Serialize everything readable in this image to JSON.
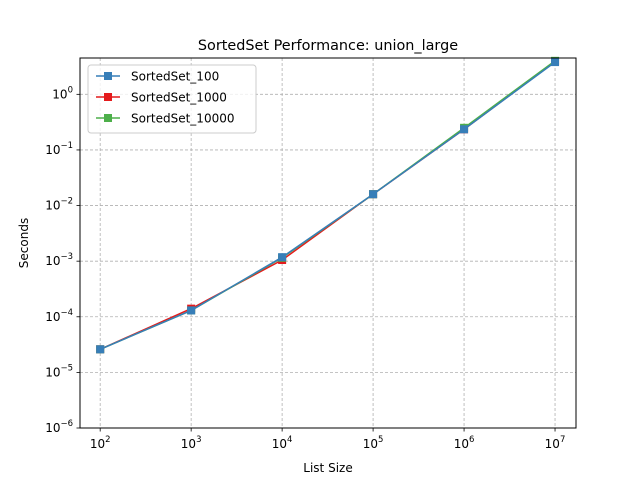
{
  "chart_data": {
    "type": "line",
    "title": "SortedSet Performance: union_large",
    "xlabel": "List Size",
    "ylabel": "Seconds",
    "xscale": "log",
    "yscale": "log",
    "xlim": [
      60,
      17000000
    ],
    "ylim": [
      1e-06,
      4.5
    ],
    "grid": true,
    "legend_position": "top-left",
    "x": [
      100,
      1000,
      10000,
      100000,
      1000000,
      10000000
    ],
    "x_ticks": [
      {
        "value": 100,
        "base": "10",
        "exp": "2"
      },
      {
        "value": 1000,
        "base": "10",
        "exp": "3"
      },
      {
        "value": 10000,
        "base": "10",
        "exp": "4"
      },
      {
        "value": 100000,
        "base": "10",
        "exp": "5"
      },
      {
        "value": 1000000,
        "base": "10",
        "exp": "6"
      },
      {
        "value": 10000000,
        "base": "10",
        "exp": "7"
      }
    ],
    "y_ticks": [
      {
        "value": 1e-06,
        "base": "10",
        "exp": "−6"
      },
      {
        "value": 1e-05,
        "base": "10",
        "exp": "−5"
      },
      {
        "value": 0.0001,
        "base": "10",
        "exp": "−4"
      },
      {
        "value": 0.001,
        "base": "10",
        "exp": "−3"
      },
      {
        "value": 0.01,
        "base": "10",
        "exp": "−2"
      },
      {
        "value": 0.1,
        "base": "10",
        "exp": "−1"
      },
      {
        "value": 1,
        "base": "10",
        "exp": "0"
      }
    ],
    "series": [
      {
        "name": "SortedSet_1000",
        "color": "#e41a1c",
        "values": [
          2.6e-05,
          0.00014,
          0.00105,
          0.016,
          0.235,
          3.9
        ]
      },
      {
        "name": "SortedSet_10000",
        "color": "#4daf4a",
        "values": [
          2.6e-05,
          0.00013,
          0.00115,
          0.016,
          0.25,
          4.0
        ]
      },
      {
        "name": "SortedSet_100",
        "color": "#377eb8",
        "values": [
          2.6e-05,
          0.00013,
          0.00118,
          0.016,
          0.235,
          3.8
        ]
      }
    ],
    "legend_order": [
      "SortedSet_100",
      "SortedSet_1000",
      "SortedSet_10000"
    ]
  }
}
